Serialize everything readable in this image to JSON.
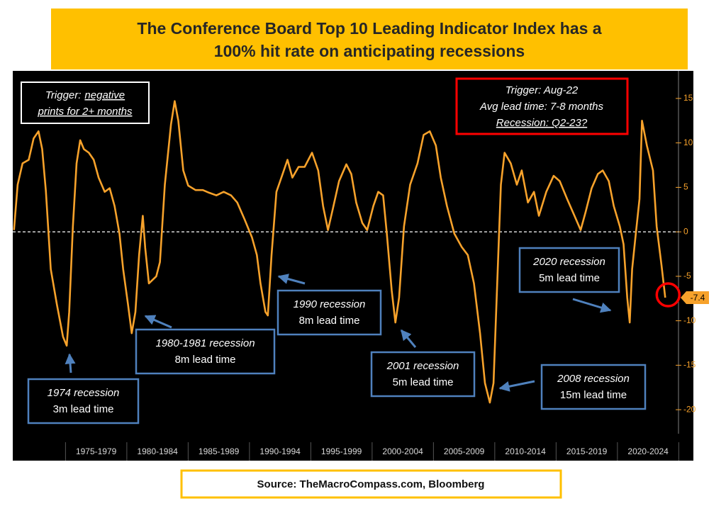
{
  "chart_data": {
    "type": "line",
    "title": [
      "The Conference Board Top 10 Leading Indicator Index has a",
      "100% hit rate on anticipating recessions"
    ],
    "source": "Source: TheMacroCompass.com, Bloomberg",
    "color": "#f7a22b",
    "x": [
      1970.8,
      1971.1,
      1971.5,
      1972.0,
      1972.4,
      1972.8,
      1973.1,
      1973.4,
      1973.8,
      1974.3,
      1974.8,
      1975.1,
      1975.3,
      1975.6,
      1975.9,
      1976.2,
      1976.5,
      1976.9,
      1977.3,
      1977.7,
      1978.2,
      1978.6,
      1979.0,
      1979.4,
      1979.7,
      1980.1,
      1980.4,
      1980.7,
      1981.0,
      1981.3,
      1981.5,
      1981.8,
      1982.1,
      1982.4,
      1982.7,
      1983.1,
      1983.6,
      1983.9,
      1984.2,
      1984.6,
      1985.0,
      1985.6,
      1986.2,
      1986.7,
      1987.3,
      1987.9,
      1988.5,
      1989.0,
      1989.6,
      1990.2,
      1990.6,
      1990.9,
      1991.3,
      1991.5,
      1991.8,
      1992.2,
      1992.7,
      1993.1,
      1993.5,
      1994.0,
      1994.5,
      1995.1,
      1995.6,
      1996.0,
      1996.4,
      1996.8,
      1997.3,
      1997.9,
      1998.3,
      1998.7,
      1999.2,
      1999.6,
      2000.1,
      2000.5,
      2000.9,
      2001.2,
      2001.6,
      2001.9,
      2002.2,
      2002.6,
      2003.1,
      2003.7,
      2004.2,
      2004.7,
      2005.2,
      2005.6,
      2006.1,
      2006.7,
      2007.3,
      2007.8,
      2008.3,
      2008.8,
      2009.2,
      2009.6,
      2009.9,
      2010.2,
      2010.5,
      2010.8,
      2011.3,
      2011.8,
      2012.2,
      2012.7,
      2013.2,
      2013.6,
      2014.2,
      2014.8,
      2015.3,
      2015.9,
      2016.5,
      2017.0,
      2017.4,
      2017.9,
      2018.4,
      2018.8,
      2019.3,
      2019.7,
      2020.2,
      2020.5,
      2020.8,
      2021.0,
      2021.2,
      2021.5,
      2021.8,
      2022.0,
      2022.4,
      2022.9,
      2023.2,
      2023.6,
      2023.9
    ],
    "values": [
      0.2,
      5.3,
      7.7,
      8.1,
      10.5,
      11.3,
      9.3,
      4.6,
      -4.2,
      -8.2,
      -11.8,
      -12.8,
      -9,
      0.6,
      7.7,
      10.3,
      9.3,
      8.9,
      8.1,
      6.1,
      4.5,
      4.9,
      2.9,
      -0.2,
      -4.2,
      -8.2,
      -11.4,
      -9,
      -2.6,
      1.8,
      -1.8,
      -5.8,
      -5.4,
      -5,
      -3.4,
      5.3,
      12.1,
      14.7,
      12.5,
      6.9,
      5.2,
      4.7,
      4.7,
      4.4,
      4.1,
      4.5,
      4.1,
      3.3,
      1.4,
      -0.6,
      -2.6,
      -5.8,
      -9,
      -9.4,
      -2.6,
      4.5,
      6.5,
      8.1,
      6.1,
      7.3,
      7.3,
      8.9,
      6.9,
      2.9,
      0.2,
      2.6,
      5.7,
      7.6,
      6.5,
      3.3,
      1,
      0.2,
      2.9,
      4.5,
      4.1,
      -0.2,
      -6.6,
      -10.2,
      -7.4,
      0.6,
      5.3,
      7.7,
      10.9,
      11.3,
      9.7,
      6.1,
      2.9,
      -0.2,
      -1.7,
      -2.6,
      -5.8,
      -11.4,
      -17,
      -19.2,
      -17,
      -5.8,
      5.3,
      8.9,
      7.7,
      5.3,
      6.9,
      3.3,
      4.5,
      1.8,
      4.5,
      6.3,
      5.7,
      3.7,
      1.8,
      0.2,
      2.2,
      4.9,
      6.5,
      6.9,
      5.7,
      2.9,
      0.6,
      -1.4,
      -7.4,
      -10.2,
      -4.2,
      -0.2,
      3.7,
      12.5,
      9.7,
      6.9,
      0.6,
      -3.8,
      -7.4
    ],
    "xlim": [
      1970.7,
      2025.5
    ],
    "xticks": [
      1975,
      1980,
      1985,
      1990,
      1995,
      2000,
      2005,
      2010,
      2015,
      2020,
      2025
    ],
    "categories": [
      "1975-1979",
      "1980-1984",
      "1985-1989",
      "1990-1994",
      "1995-1999",
      "2000-2004",
      "2005-2009",
      "2010-2014",
      "2015-2019",
      "2020-2024"
    ],
    "ylim": [
      -22.7,
      18.1
    ],
    "yticks": [
      15,
      10,
      5,
      0,
      -5,
      -10,
      -15,
      -20
    ],
    "reference_line": 0,
    "trigger_note": {
      "label": "Trigger:",
      "lines": [
        "negative",
        "prints for 2+ months"
      ]
    },
    "forecast_note": [
      "Trigger: Aug-22",
      "Avg lead time: 7-8 months",
      "Recession: Q2-23?"
    ],
    "annotations": [
      {
        "lines": [
          "1974 recession",
          "3m lead time"
        ]
      },
      {
        "lines": [
          "1980-1981 recession",
          "8m lead time"
        ]
      },
      {
        "lines": [
          "1990 recession",
          "8m lead time"
        ]
      },
      {
        "lines": [
          "2001 recession",
          "5m lead time"
        ]
      },
      {
        "lines": [
          "2008 recession",
          "15m lead time"
        ]
      },
      {
        "lines": [
          "2020 recession",
          "5m lead time"
        ]
      }
    ]
  }
}
